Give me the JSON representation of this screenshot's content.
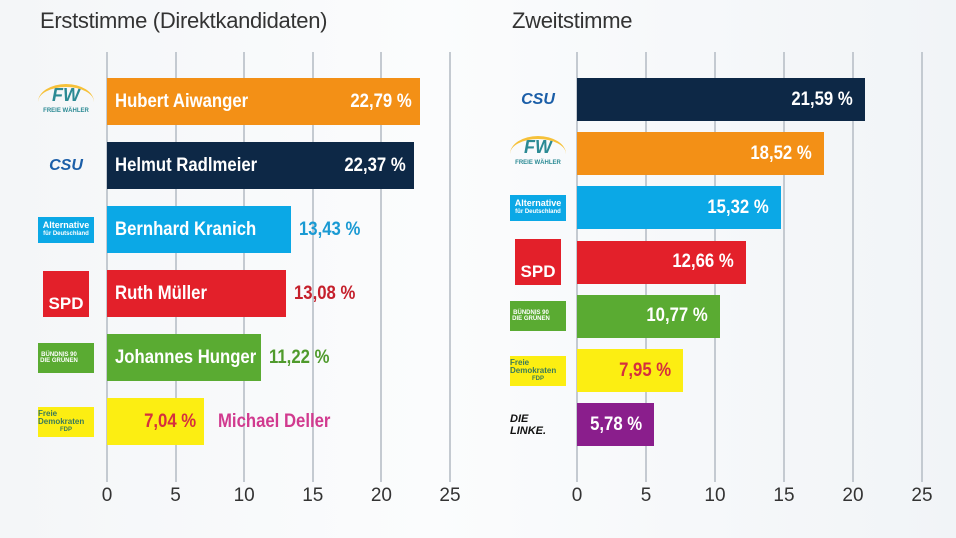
{
  "chart_data": [
    {
      "type": "bar",
      "orientation": "horizontal",
      "title": "Erststimme (Direktkandidaten)",
      "xlim": [
        0,
        25
      ],
      "ticks": [
        "0",
        "5",
        "10",
        "15",
        "20",
        "25"
      ],
      "grid": true,
      "rows": [
        {
          "party": "FW",
          "logo": "FW",
          "logo_sub": "FREIE WÄHLER",
          "candidate": "Hubert Aiwanger",
          "value": 22.79,
          "label": "22,79 %",
          "color": "#f39016",
          "label_color": "#ffffff",
          "value_inside": true
        },
        {
          "party": "CSU",
          "logo": "CSU",
          "candidate": "Helmut Radlmeier",
          "value": 22.37,
          "label": "22,37 %",
          "color": "#0d2846",
          "label_color": "#ffffff",
          "value_inside": true
        },
        {
          "party": "AfD",
          "logo": "Alternative",
          "logo_sub": "für Deutschland",
          "candidate": "Bernhard Kranich",
          "value": 13.43,
          "label": "13,43 %",
          "color": "#0ba8e6",
          "label_color": "#1a9ad3",
          "value_inside": false
        },
        {
          "party": "SPD",
          "logo": "SPD",
          "candidate": "Ruth Müller",
          "value": 13.08,
          "label": "13,08 %",
          "color": "#e3202a",
          "label_color": "#c5202c",
          "value_inside": false
        },
        {
          "party": "Grüne",
          "logo": "BÜNDNIS 90 DIE GRÜNEN",
          "candidate": "Johannes Hunger",
          "value": 11.22,
          "label": "11,22 %",
          "color": "#5aab32",
          "label_color": "#4f9a2c",
          "value_inside": false
        },
        {
          "party": "FDP",
          "logo": "Freie Demokraten",
          "logo_sub": "FDP",
          "candidate": "Michael Deller",
          "value": 7.04,
          "label": "7,04 %",
          "color": "#fcee12",
          "label_color": "#d5303e",
          "value_inside": true,
          "name_outside": true,
          "name_color": "#d13a8f"
        }
      ]
    },
    {
      "type": "bar",
      "orientation": "horizontal",
      "title": "Zweitstimme",
      "xlim": [
        0,
        25
      ],
      "ticks": [
        "0",
        "5",
        "10",
        "15",
        "20",
        "25"
      ],
      "grid": true,
      "rows": [
        {
          "party": "CSU",
          "logo": "CSU",
          "value": 21.59,
          "label": "21,59 %",
          "color": "#0d2846",
          "label_color": "#ffffff"
        },
        {
          "party": "FW",
          "logo": "FW",
          "logo_sub": "FREIE WÄHLER",
          "value": 18.52,
          "label": "18,52 %",
          "color": "#f39016",
          "label_color": "#ffffff"
        },
        {
          "party": "AfD",
          "logo": "Alternative",
          "logo_sub": "für Deutschland",
          "value": 15.32,
          "label": "15,32 %",
          "color": "#0ba8e6",
          "label_color": "#ffffff"
        },
        {
          "party": "SPD",
          "logo": "SPD",
          "value": 12.66,
          "label": "12,66 %",
          "color": "#e3202a",
          "label_color": "#ffffff"
        },
        {
          "party": "Grüne",
          "logo": "BÜNDNIS 90 DIE GRÜNEN",
          "value": 10.77,
          "label": "10,77 %",
          "color": "#5aab32",
          "label_color": "#ffffff"
        },
        {
          "party": "FDP",
          "logo": "Freie Demokraten",
          "logo_sub": "FDP",
          "value": 7.95,
          "label": "7,95 %",
          "color": "#fcee12",
          "label_color": "#d5303e"
        },
        {
          "party": "Linke",
          "logo": "DIE LINKE.",
          "value": 5.78,
          "label": "5,78 %",
          "color": "#8a1e8c",
          "label_color": "#ffffff"
        }
      ]
    }
  ]
}
